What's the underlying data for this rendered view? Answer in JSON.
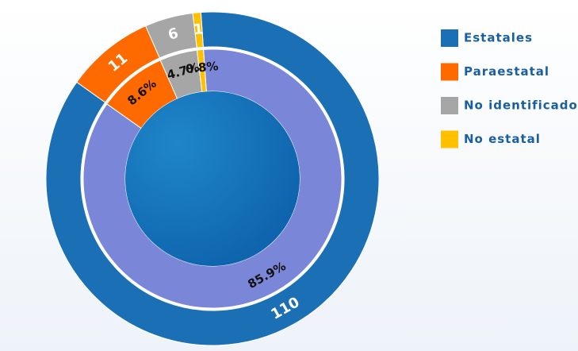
{
  "chart_data": {
    "type": "double-donut",
    "categories": [
      "Estatales",
      "Paraestatal",
      "No identificado",
      "No estatal"
    ],
    "colors": [
      "#1a6fb5",
      "#ff6a00",
      "#a6a6a6",
      "#ffc000"
    ],
    "inner_colors": [
      "#7a86d8",
      "#ff6a00",
      "#a6a6a6",
      "#ffc000"
    ],
    "series": [
      {
        "values": [
          110,
          11,
          6,
          1
        ]
      },
      {
        "values": [
          85.9,
          8.6,
          4.7,
          0.8
        ],
        "value_labels": [
          "85.9%",
          "8.6%",
          "4.7%",
          "0.8%"
        ]
      }
    ]
  }
}
